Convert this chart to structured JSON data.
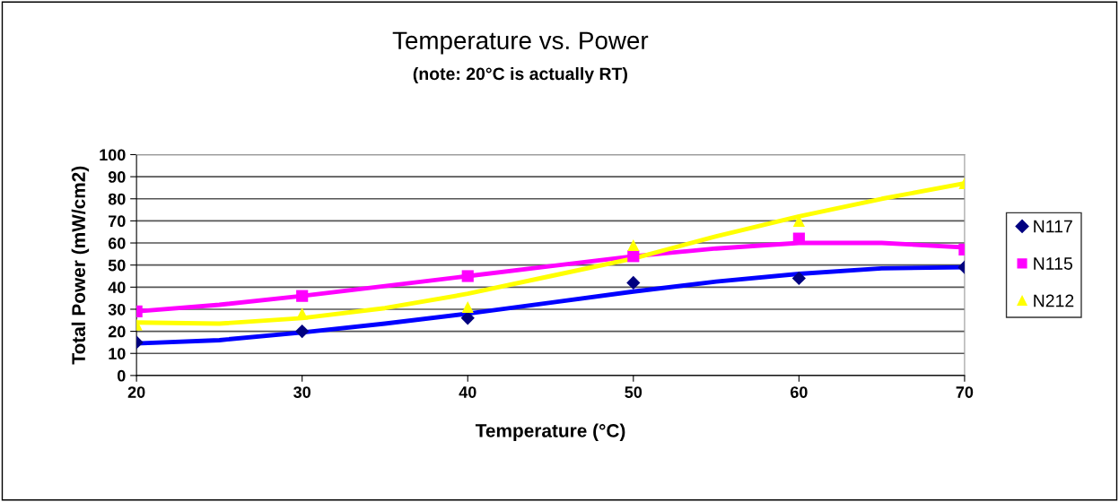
{
  "chart_data": {
    "type": "scatter",
    "title": "Temperature vs. Power",
    "subtitle": "(note: 20°C is actually RT)",
    "xlabel": "Temperature (°C)",
    "ylabel": "Total Power (mW/cm2)",
    "xlim": [
      20,
      70
    ],
    "xticks": [
      20,
      30,
      40,
      50,
      60,
      70
    ],
    "ylim": [
      0,
      100
    ],
    "yticks": [
      0,
      10,
      20,
      30,
      40,
      50,
      60,
      70,
      80,
      90,
      100
    ],
    "grid": "y",
    "legend": "right",
    "x": [
      20,
      30,
      40,
      50,
      60,
      70
    ],
    "series": [
      {
        "type": "line",
        "color": "#0000ff",
        "marker": "none",
        "x": [
          20,
          25,
          30,
          35,
          40,
          45,
          50,
          55,
          60,
          65,
          70
        ],
        "values": [
          14.5,
          16,
          19.5,
          23.5,
          28,
          33,
          38,
          42.5,
          46,
          48.5,
          49
        ]
      },
      {
        "type": "line",
        "color": "#ff00ff",
        "marker": "none",
        "x": [
          20,
          25,
          30,
          35,
          40,
          45,
          50,
          55,
          60,
          65,
          70
        ],
        "values": [
          29,
          32,
          36,
          40.5,
          45,
          49.5,
          54,
          57.5,
          60,
          60,
          58
        ]
      },
      {
        "type": "line",
        "color": "#ffff00",
        "marker": "none",
        "x": [
          20,
          25,
          30,
          35,
          40,
          45,
          50,
          55,
          60,
          65,
          70
        ],
        "values": [
          24,
          23.5,
          26,
          30.5,
          37,
          45,
          53,
          63,
          72,
          80,
          87
        ]
      },
      {
        "name": "N117",
        "color": "#000080",
        "marker": "diamond",
        "values": [
          15,
          20,
          26,
          42,
          44,
          49
        ]
      },
      {
        "name": "N115",
        "color": "#ff00ff",
        "marker": "square",
        "values": [
          29,
          36,
          45,
          54,
          62,
          57
        ]
      },
      {
        "name": "N212",
        "color": "#ffff00",
        "marker": "triangle",
        "values": [
          23,
          28,
          31,
          59,
          70,
          87
        ]
      }
    ]
  }
}
